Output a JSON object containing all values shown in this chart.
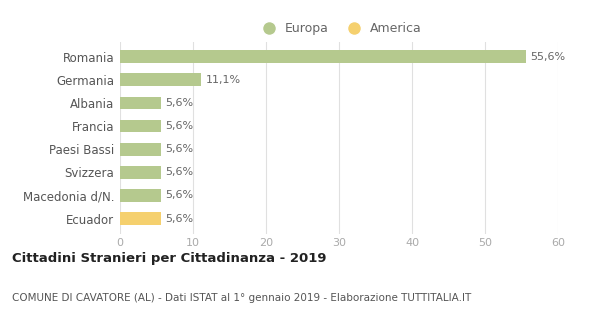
{
  "categories": [
    "Romania",
    "Germania",
    "Albania",
    "Francia",
    "Paesi Bassi",
    "Svizzera",
    "Macedonia d/N.",
    "Ecuador"
  ],
  "values": [
    55.6,
    11.1,
    5.6,
    5.6,
    5.6,
    5.6,
    5.6,
    5.6
  ],
  "labels": [
    "55,6%",
    "11,1%",
    "5,6%",
    "5,6%",
    "5,6%",
    "5,6%",
    "5,6%",
    "5,6%"
  ],
  "colors": [
    "#b5c98e",
    "#b5c98e",
    "#b5c98e",
    "#b5c98e",
    "#b5c98e",
    "#b5c98e",
    "#b5c98e",
    "#f5d06e"
  ],
  "legend_entries": [
    {
      "label": "Europa",
      "color": "#b5c98e"
    },
    {
      "label": "America",
      "color": "#f5d06e"
    }
  ],
  "xlim": [
    0,
    60
  ],
  "xticks": [
    0,
    10,
    20,
    30,
    40,
    50,
    60
  ],
  "title": "Cittadini Stranieri per Cittadinanza - 2019",
  "subtitle": "COMUNE DI CAVATORE (AL) - Dati ISTAT al 1° gennaio 2019 - Elaborazione TUTTITALIA.IT",
  "title_fontsize": 9.5,
  "subtitle_fontsize": 7.5,
  "background_color": "#ffffff",
  "bar_height": 0.55,
  "label_fontsize": 8,
  "ytick_fontsize": 8.5,
  "legend_fontsize": 9
}
